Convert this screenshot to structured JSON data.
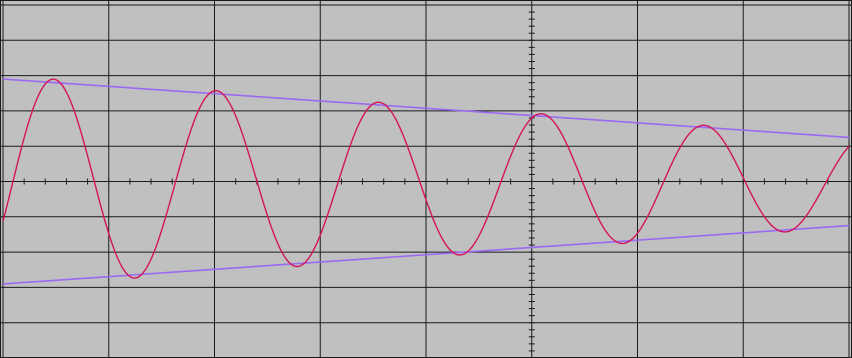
{
  "chart_data": {
    "type": "line",
    "xlim": [
      0,
      8
    ],
    "ylim": [
      -5,
      5
    ],
    "grid": true,
    "x_divisions": 8,
    "y_divisions": 10,
    "axis_ticks_per_division": 5,
    "series": [
      {
        "role": "damped-sine",
        "start_x": 0,
        "end_x": 8,
        "amplitude_at_start": 3.0,
        "amplitude_at_end": 1.3,
        "frequency_cycles_per_unit": 0.65,
        "phase_rad": -0.385,
        "color": "#d4145a"
      },
      {
        "role": "upper-envelope",
        "points": [
          [
            0,
            2.9
          ],
          [
            8,
            1.25
          ]
        ],
        "color": "#9b6af0"
      },
      {
        "role": "lower-envelope",
        "points": [
          [
            0,
            -2.9
          ],
          [
            8,
            -1.25
          ]
        ],
        "color": "#9b6af0"
      }
    ],
    "colors": {
      "background": "#c0c0c0",
      "grid": "#1a1a1a",
      "axes": "#1a1a1a"
    }
  }
}
